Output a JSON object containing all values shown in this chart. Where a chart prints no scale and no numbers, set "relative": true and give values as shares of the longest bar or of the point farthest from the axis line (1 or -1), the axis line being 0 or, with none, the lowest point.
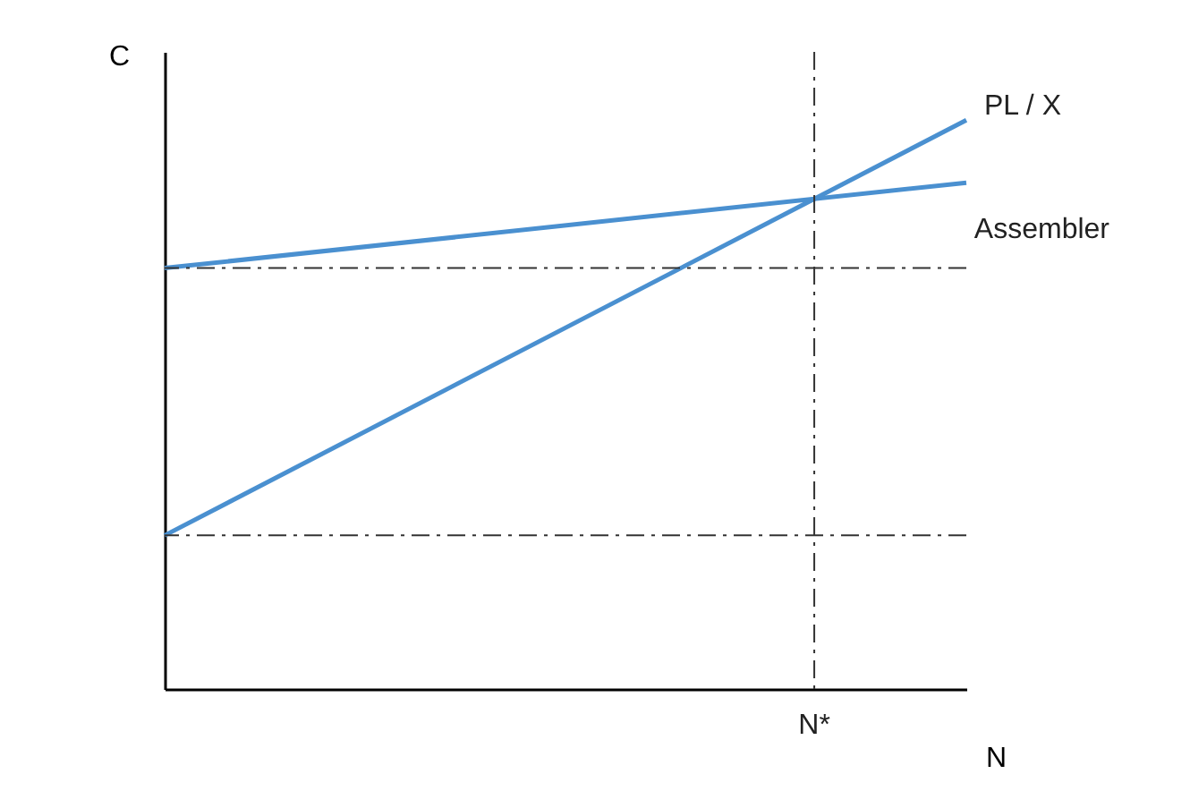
{
  "chart_data": {
    "type": "line",
    "relative": true,
    "xlabel": "N",
    "ylabel": "C",
    "categories": [
      null,
      null
    ],
    "series": [
      {
        "name": "PL / X",
        "color": "#4a90d0",
        "values": [
          0.27,
          1
        ]
      },
      {
        "name": "Assembler",
        "color": "#4a90d0",
        "values": [
          0.74,
          0.89
        ]
      }
    ],
    "ref_lines": [
      {
        "axis": "y",
        "value": 0.74,
        "line_style": "dashed"
      },
      {
        "axis": "y",
        "value": 0.27,
        "line_style": "dashed"
      }
    ],
    "annotations": [
      "N*"
    ],
    "legend": false,
    "marker": "none",
    "line_style": "solid"
  }
}
